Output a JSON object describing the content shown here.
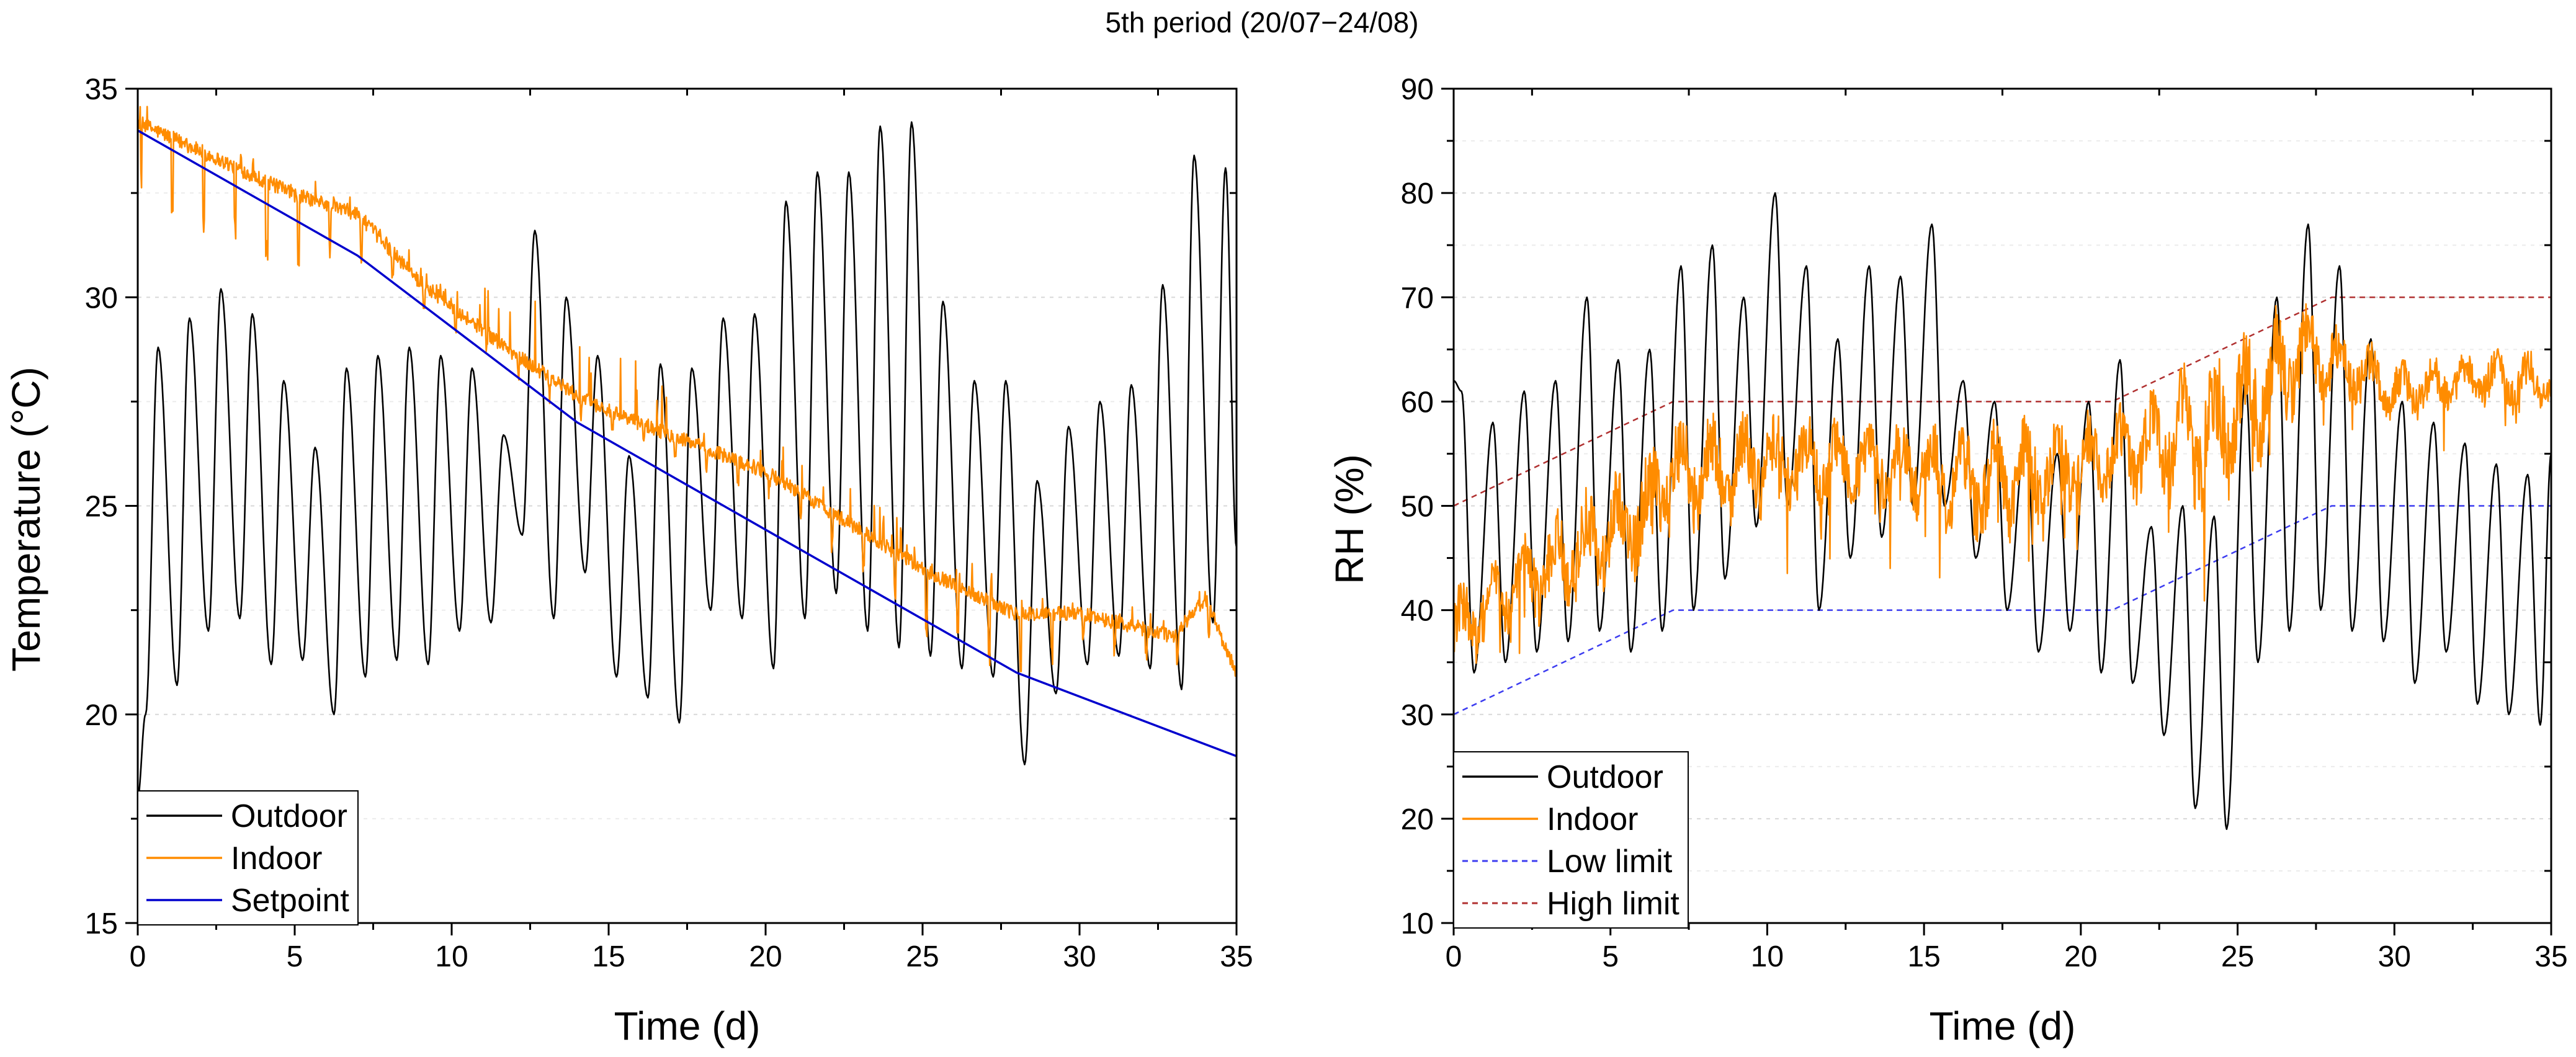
{
  "figure_title": "5th period (20/07−24/08)",
  "chart_data": [
    {
      "type": "line",
      "id": "temperature",
      "title": "",
      "xlabel": "Time (d)",
      "ylabel": "Temperature (°C)",
      "xlim": [
        0,
        35
      ],
      "ylim": [
        15,
        35
      ],
      "xticks": [
        0,
        5,
        10,
        15,
        20,
        25,
        30,
        35
      ],
      "yticks": [
        15,
        20,
        25,
        30,
        35
      ],
      "grid": "horizontal-dotted",
      "legend_position": "bottom-left",
      "series": [
        {
          "name": "Outdoor",
          "color": "#000000",
          "style": "solid",
          "kind": "daily_cycle",
          "trough_time": 0.25,
          "peak_time": 0.65,
          "start_value": 18.0,
          "daily": [
            [
              20.0,
              28.8
            ],
            [
              20.7,
              29.5
            ],
            [
              22.0,
              30.2
            ],
            [
              22.3,
              29.6
            ],
            [
              21.2,
              28.0
            ],
            [
              21.3,
              26.4
            ],
            [
              20.0,
              28.3
            ],
            [
              20.9,
              28.6
            ],
            [
              21.3,
              28.8
            ],
            [
              21.2,
              28.6
            ],
            [
              22.0,
              28.3
            ],
            [
              22.2,
              26.7
            ],
            [
              24.3,
              31.6
            ],
            [
              22.3,
              30.0
            ],
            [
              23.4,
              28.6
            ],
            [
              20.9,
              26.2
            ],
            [
              20.4,
              28.4
            ],
            [
              19.8,
              28.3
            ],
            [
              22.5,
              29.5
            ],
            [
              22.3,
              29.6
            ],
            [
              21.1,
              32.3
            ],
            [
              22.3,
              33.0
            ],
            [
              22.9,
              33.0
            ],
            [
              22.0,
              34.1
            ],
            [
              21.6,
              34.2
            ],
            [
              21.4,
              29.9
            ],
            [
              21.1,
              28.0
            ],
            [
              20.9,
              28.0
            ],
            [
              18.8,
              25.6
            ],
            [
              20.5,
              26.9
            ],
            [
              21.2,
              27.5
            ],
            [
              21.4,
              27.9
            ],
            [
              21.1,
              30.3
            ],
            [
              20.6,
              33.4
            ],
            [
              22.2,
              33.1
            ]
          ],
          "end_value": 24.0
        },
        {
          "name": "Indoor",
          "color": "#FF8C00",
          "style": "solid",
          "kind": "offset_from_setpoint",
          "offset_points": [
            [
              0,
              0.2
            ],
            [
              5,
              0.6
            ],
            [
              7,
              1.0
            ],
            [
              9,
              0.5
            ],
            [
              12,
              0.5
            ],
            [
              15,
              0.7
            ],
            [
              20,
              1.4
            ],
            [
              25,
              1.2
            ],
            [
              28,
              1.4
            ],
            [
              30,
              2.0
            ],
            [
              32,
              2.2
            ],
            [
              33,
              2.3
            ],
            [
              34,
              3.5
            ],
            [
              35,
              2.0
            ]
          ],
          "dip_points": [
            [
              0,
              2.0
            ],
            [
              3,
              2.0
            ],
            [
              5,
              2.0
            ],
            [
              7,
              1.0
            ],
            [
              10,
              0.5
            ],
            [
              13,
              0.5
            ],
            [
              20,
              0.5
            ],
            [
              25,
              1.5
            ],
            [
              28,
              1.5
            ],
            [
              30,
              0.8
            ],
            [
              35,
              0.8
            ]
          ],
          "spike_points": [
            [
              0,
              0.4
            ],
            [
              10,
              0.5
            ],
            [
              12,
              1.8
            ],
            [
              14,
              2.0
            ],
            [
              18,
              0.8
            ],
            [
              20,
              0.8
            ],
            [
              25,
              1.0
            ],
            [
              30,
              0.5
            ],
            [
              35,
              0.5
            ]
          ]
        },
        {
          "name": "Setpoint",
          "color": "#0000CD",
          "style": "solid",
          "kind": "piecewise",
          "points": [
            [
              0,
              34.0
            ],
            [
              7,
              31.0
            ],
            [
              14,
              27.0
            ],
            [
              21,
              24.0
            ],
            [
              28,
              21.0
            ],
            [
              35,
              19.0
            ]
          ]
        }
      ]
    },
    {
      "type": "line",
      "id": "humidity",
      "title": "",
      "xlabel": "Time (d)",
      "ylabel": "RH (%)",
      "xlim": [
        0,
        35
      ],
      "ylim": [
        10,
        90
      ],
      "xticks": [
        0,
        5,
        10,
        15,
        20,
        25,
        30,
        35
      ],
      "yticks": [
        10,
        20,
        30,
        40,
        50,
        60,
        70,
        80,
        90
      ],
      "grid": "horizontal-dotted",
      "legend_position": "bottom-left",
      "series": [
        {
          "name": "Outdoor",
          "color": "#000000",
          "style": "solid",
          "kind": "daily_cycle_rh",
          "trough_time": 0.65,
          "peak_time": 0.25,
          "start_value": 62,
          "daily": [
            [
              61,
              34
            ],
            [
              58,
              35
            ],
            [
              61,
              36
            ],
            [
              62,
              37
            ],
            [
              70,
              38
            ],
            [
              64,
              36
            ],
            [
              65,
              38
            ],
            [
              73,
              40
            ],
            [
              75,
              43
            ],
            [
              70,
              48
            ],
            [
              80,
              50
            ],
            [
              73,
              40
            ],
            [
              66,
              45
            ],
            [
              73,
              47
            ],
            [
              72,
              50
            ],
            [
              77,
              50
            ],
            [
              62,
              45
            ],
            [
              60,
              40
            ],
            [
              57,
              36
            ],
            [
              55,
              38
            ],
            [
              60,
              34
            ],
            [
              64,
              33
            ],
            [
              48,
              28
            ],
            [
              50,
              21
            ],
            [
              49,
              19
            ],
            [
              62,
              35
            ],
            [
              70,
              38
            ],
            [
              77,
              40
            ],
            [
              73,
              38
            ],
            [
              66,
              37
            ],
            [
              60,
              33
            ],
            [
              58,
              36
            ],
            [
              56,
              31
            ],
            [
              54,
              30
            ],
            [
              53,
              29
            ]
          ],
          "end_value": 55
        },
        {
          "name": "Indoor",
          "color": "#FF8C00",
          "style": "solid",
          "kind": "rh_indoor",
          "center_points": [
            [
              0,
              38
            ],
            [
              3,
              44
            ],
            [
              6,
              49
            ],
            [
              7,
              53
            ],
            [
              10,
              54
            ],
            [
              14,
              54
            ],
            [
              17,
              52
            ],
            [
              21,
              55
            ],
            [
              24,
              57
            ],
            [
              27,
              64
            ],
            [
              28,
              64
            ],
            [
              30,
              61
            ],
            [
              33,
              62
            ],
            [
              35,
              62
            ]
          ],
          "amp_points": [
            [
              0,
              4
            ],
            [
              3,
              5
            ],
            [
              7,
              6
            ],
            [
              10,
              5
            ],
            [
              14,
              4
            ],
            [
              17,
              6
            ],
            [
              21,
              4
            ],
            [
              24,
              8
            ],
            [
              27,
              6
            ],
            [
              28,
              4
            ],
            [
              30,
              3
            ],
            [
              35,
              3
            ]
          ]
        },
        {
          "name": "Low limit",
          "color": "#3C3CF0",
          "style": "dashed",
          "kind": "piecewise",
          "points": [
            [
              0,
              30
            ],
            [
              7,
              40
            ],
            [
              21,
              40
            ],
            [
              28,
              50
            ],
            [
              35,
              50
            ]
          ]
        },
        {
          "name": "High limit",
          "color": "#B03030",
          "style": "dashed",
          "kind": "piecewise",
          "points": [
            [
              0,
              50
            ],
            [
              7,
              60
            ],
            [
              21,
              60
            ],
            [
              28,
              70
            ],
            [
              35,
              70
            ]
          ]
        }
      ]
    }
  ]
}
